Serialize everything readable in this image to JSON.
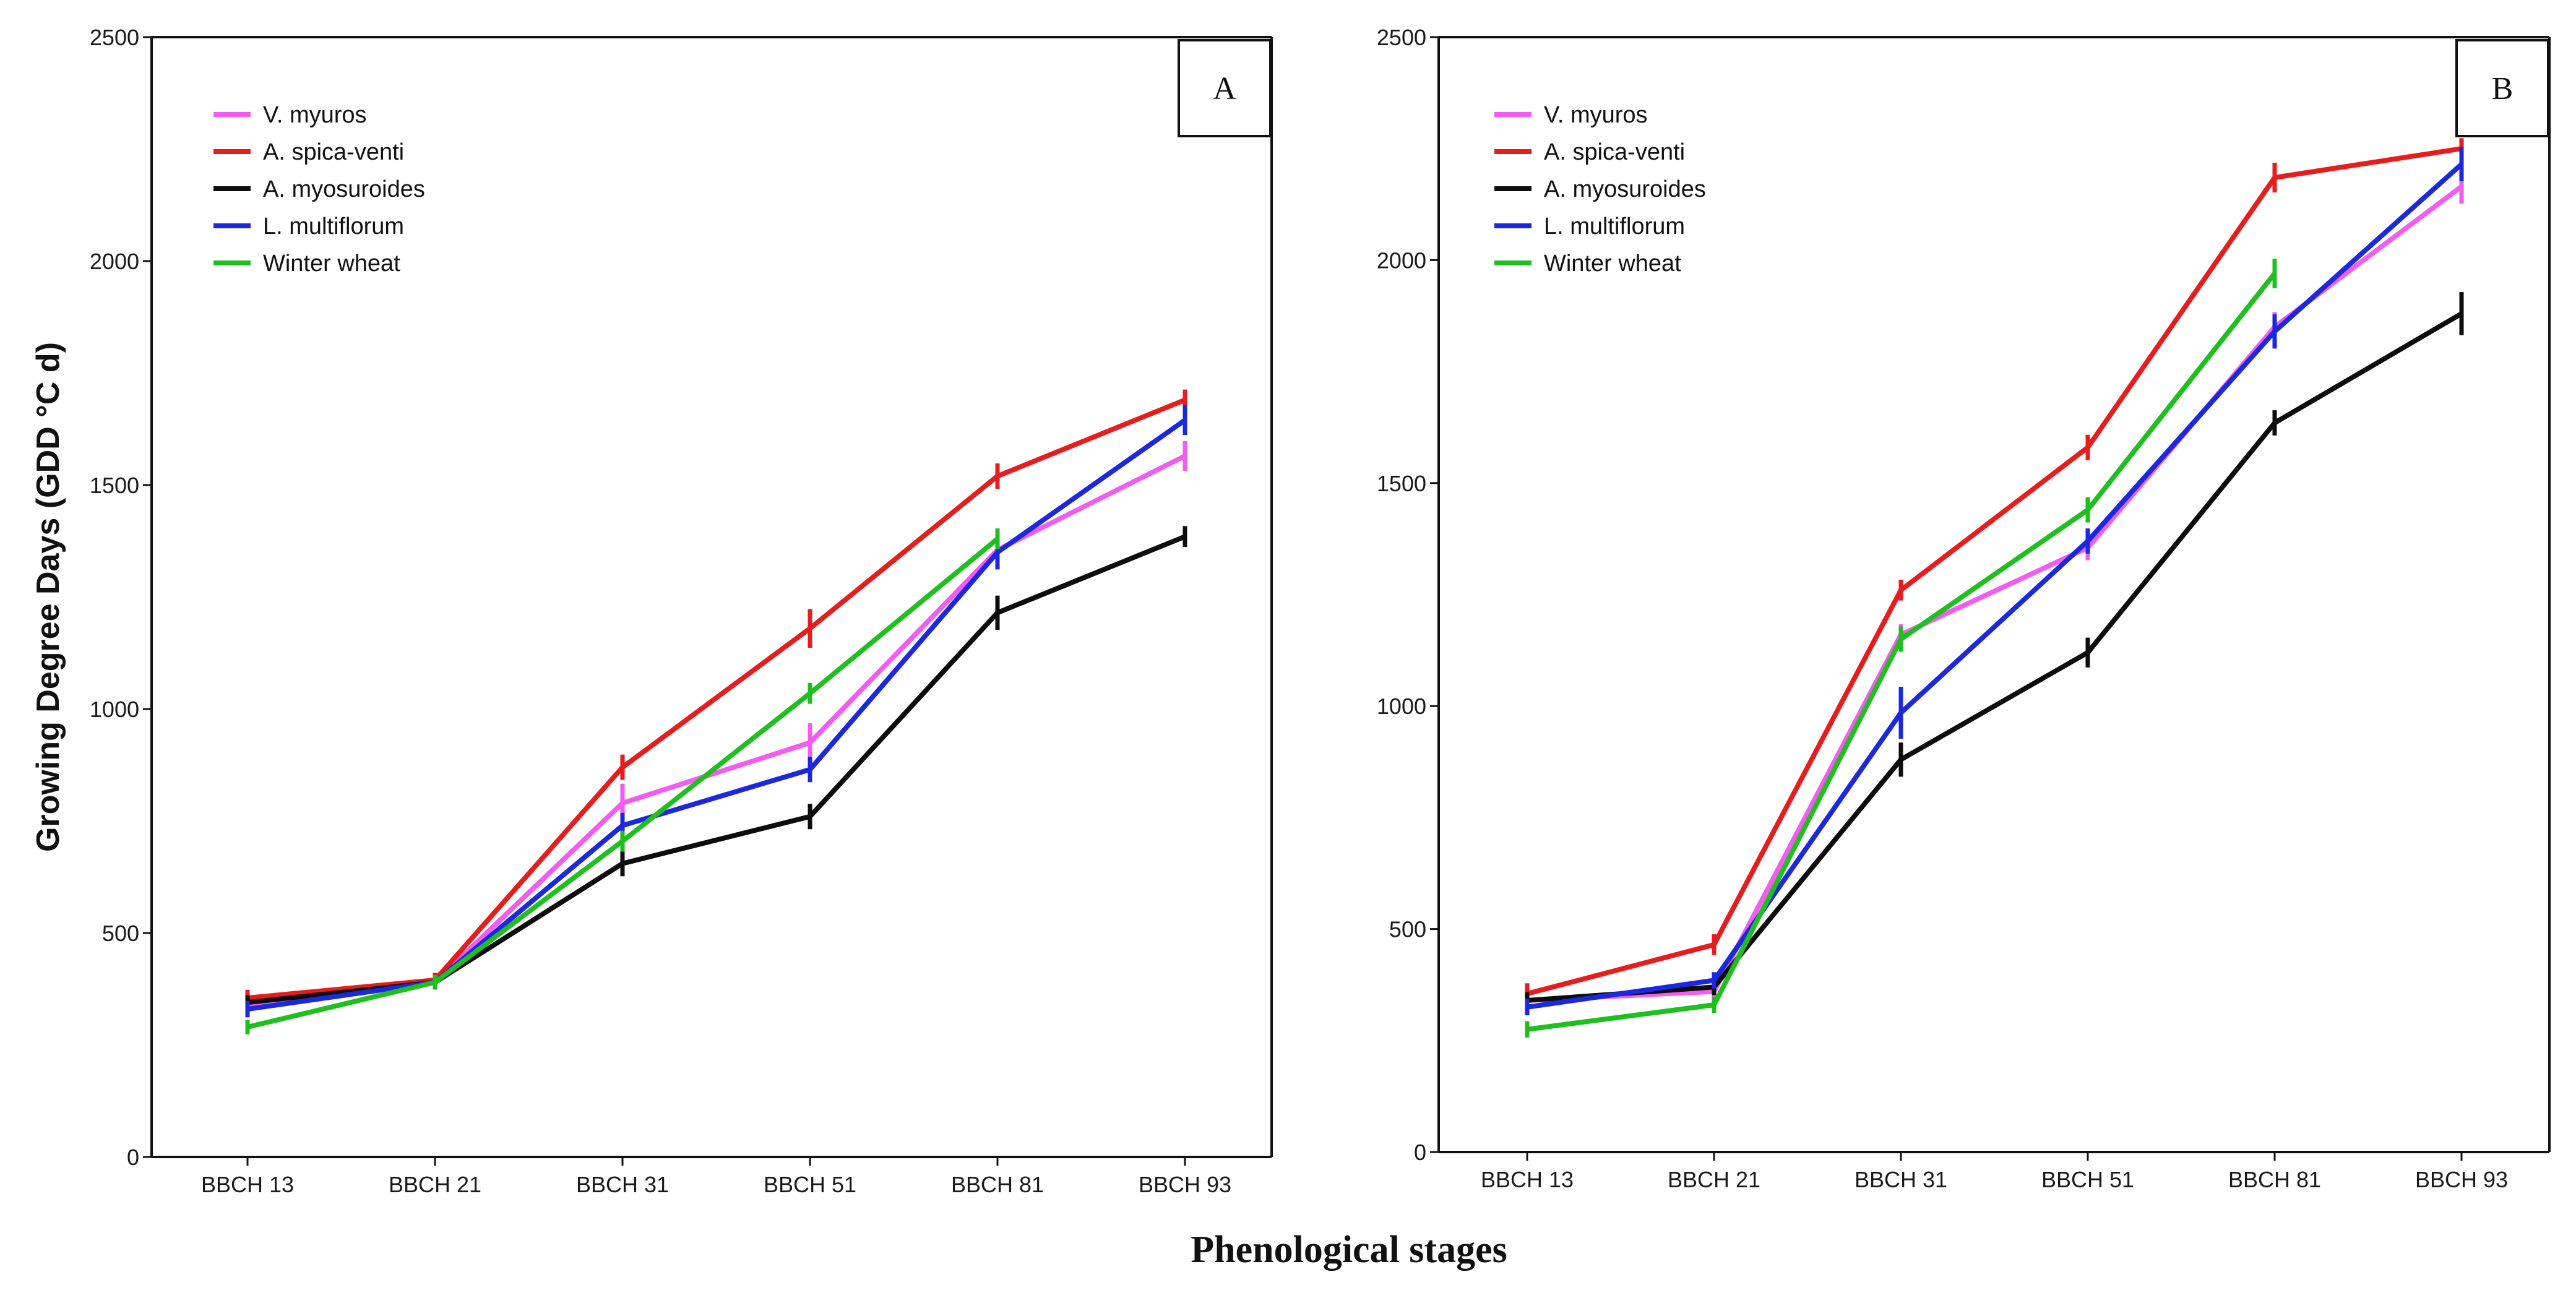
{
  "chart_data": [
    {
      "type": "line",
      "panel_label": "A",
      "categories": [
        "BBCH 13",
        "BBCH 21",
        "BBCH 31",
        "BBCH 51",
        "BBCH 81",
        "BBCH 93"
      ],
      "ylim": [
        0,
        2500
      ],
      "yticks": [
        "0",
        "500",
        "1000",
        "1500",
        "2000",
        "2500"
      ],
      "series": [
        {
          "name": "V. myuros",
          "color": "#f25cf0",
          "values": [
            340,
            390,
            790,
            925,
            1355,
            1565
          ],
          "errors": [
            10,
            8,
            35,
            35,
            25,
            25
          ]
        },
        {
          "name": "A. spica-venti",
          "color": "#e81c1c",
          "values": [
            355,
            395,
            870,
            1180,
            1520,
            1690
          ],
          "errors": [
            10,
            8,
            20,
            35,
            20,
            15
          ]
        },
        {
          "name": "A. myosuroides",
          "color": "#0d0d0d",
          "values": [
            345,
            390,
            655,
            760,
            1215,
            1385
          ],
          "errors": [
            8,
            8,
            20,
            20,
            30,
            15
          ]
        },
        {
          "name": "L. multiflorum",
          "color": "#1c28e0",
          "values": [
            330,
            390,
            740,
            865,
            1350,
            1645
          ],
          "errors": [
            10,
            8,
            20,
            20,
            30,
            25
          ]
        },
        {
          "name": "Winter wheat",
          "color": "#1fbf1f",
          "values": [
            290,
            390,
            705,
            1035,
            1380,
            null
          ],
          "errors": [
            8,
            8,
            15,
            15,
            15,
            0
          ]
        }
      ]
    },
    {
      "type": "line",
      "panel_label": "B",
      "categories": [
        "BBCH 13",
        "BBCH 21",
        "BBCH 31",
        "BBCH 51",
        "BBCH 81",
        "BBCH 93"
      ],
      "ylim": [
        0,
        2500
      ],
      "yticks": [
        "0",
        "500",
        "1000",
        "1500",
        "2000",
        "2500"
      ],
      "series": [
        {
          "name": "V. myuros",
          "color": "#f25cf0",
          "values": [
            340,
            360,
            1160,
            1355,
            1850,
            2165
          ],
          "errors": [
            10,
            10,
            15,
            20,
            25,
            30
          ]
        },
        {
          "name": "A. spica-venti",
          "color": "#e81c1c",
          "values": [
            355,
            465,
            1260,
            1580,
            2185,
            2250
          ],
          "errors": [
            15,
            15,
            15,
            20,
            25,
            15
          ]
        },
        {
          "name": "A. myosuroides",
          "color": "#0d0d0d",
          "values": [
            340,
            370,
            880,
            1120,
            1635,
            1880
          ],
          "errors": [
            10,
            10,
            30,
            25,
            20,
            40
          ]
        },
        {
          "name": "L. multiflorum",
          "color": "#1c28e0",
          "values": [
            325,
            385,
            985,
            1370,
            1840,
            2215
          ],
          "errors": [
            10,
            10,
            50,
            20,
            30,
            30
          ]
        },
        {
          "name": "Winter wheat",
          "color": "#1fbf1f",
          "values": [
            275,
            330,
            1150,
            1440,
            1970,
            null
          ],
          "errors": [
            10,
            10,
            20,
            20,
            25,
            0
          ]
        }
      ]
    }
  ],
  "ylabel": "Growing Degree Days (GDD °C d)",
  "xlabel": "Phenological stages"
}
